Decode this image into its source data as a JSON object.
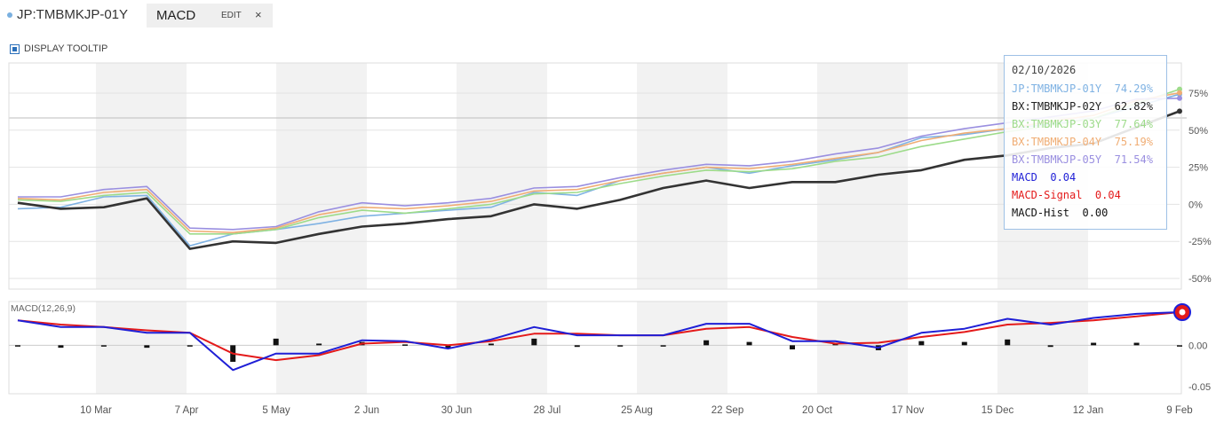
{
  "header": {
    "ticker": "JP:TMBMKJP-01Y",
    "study_tab": "MACD",
    "edit_label": "EDIT",
    "close_label": "×"
  },
  "toggle": {
    "label": "DISPLAY TOOLTIP"
  },
  "colors": {
    "s1": "#7fb2e3",
    "s2": "#333333",
    "s3": "#9ddb8a",
    "s4": "#f0ad74",
    "s5": "#9a8fe0",
    "macd": "#1f1fd6",
    "signal": "#e41a1a",
    "hist": "#111111",
    "shade": "#f2f2f2"
  },
  "tooltip": {
    "date": "02/10/2026",
    "rows": [
      {
        "label": "JP:TMBMKJP-01Y",
        "value": "74.29%",
        "color": "#7fb2e3"
      },
      {
        "label": "BX:TMBMKJP-02Y",
        "value": "62.82%",
        "color": "#222222"
      },
      {
        "label": "BX:TMBMKJP-03Y",
        "value": "77.64%",
        "color": "#9ddb8a"
      },
      {
        "label": "BX:TMBMKJP-04Y",
        "value": "75.19%",
        "color": "#f0ad74"
      },
      {
        "label": "BX:TMBMKJP-05Y",
        "value": "71.54%",
        "color": "#9a8fe0"
      },
      {
        "label": "MACD",
        "value": "0.04",
        "color": "#1f1fd6"
      },
      {
        "label": "MACD-Signal",
        "value": "0.04",
        "color": "#e41a1a"
      },
      {
        "label": "MACD-Hist",
        "value": "0.00",
        "color": "#111111"
      }
    ]
  },
  "chart_data": [
    {
      "type": "line",
      "y_unit": "%",
      "ylim": [
        -50,
        75
      ],
      "yticks": [
        "75%",
        "50%",
        "25%",
        "0%",
        "-25%",
        "-50%"
      ],
      "x": [
        "Feb 10",
        "Feb 24",
        "Mar 10",
        "Mar 24",
        "Apr 7",
        "Apr 21",
        "May 5",
        "May 19",
        "Jun 2",
        "Jun 16",
        "Jun 30",
        "Jul 14",
        "Jul 28",
        "Aug 11",
        "Aug 25",
        "Sep 8",
        "Sep 22",
        "Oct 6",
        "Oct 20",
        "Nov 3",
        "Nov 17",
        "Dec 1",
        "Dec 15",
        "Dec 29",
        "Jan 12",
        "Jan 26",
        "Feb 9",
        "Feb 10"
      ],
      "xticks": [
        "10 Mar",
        "7 Apr",
        "5 May",
        "2 Jun",
        "30 Jun",
        "28 Jul",
        "25 Aug",
        "22 Sep",
        "20 Oct",
        "17 Nov",
        "15 Dec",
        "12 Jan",
        "9 Feb"
      ],
      "series": [
        {
          "name": "JP:TMBMKJP-01Y",
          "values": [
            -3,
            -2,
            5,
            6,
            -28,
            -20,
            -17,
            -13,
            -8,
            -6,
            -4,
            -2,
            8,
            6,
            16,
            21,
            25,
            21,
            26,
            30,
            35,
            45,
            47,
            51,
            54,
            58,
            66,
            74.29
          ]
        },
        {
          "name": "BX:TMBMKJP-02Y",
          "values": [
            1,
            -3,
            -2,
            4,
            -30,
            -25,
            -26,
            -20,
            -15,
            -13,
            -10,
            -8,
            0,
            -3,
            3,
            11,
            16,
            11,
            15,
            15,
            20,
            23,
            30,
            33,
            38,
            41,
            52,
            62.82
          ]
        },
        {
          "name": "BX:TMBMKJP-03Y",
          "values": [
            3,
            2,
            6,
            8,
            -20,
            -20,
            -17,
            -9,
            -4,
            -6,
            -3,
            0,
            7,
            8,
            14,
            19,
            23,
            22,
            24,
            29,
            32,
            39,
            44,
            49,
            53,
            58,
            68,
            77.64
          ]
        },
        {
          "name": "BX:TMBMKJP-04Y",
          "values": [
            4,
            3,
            8,
            10,
            -18,
            -19,
            -16,
            -7,
            -2,
            -3,
            -1,
            2,
            9,
            10,
            16,
            21,
            25,
            24,
            27,
            31,
            35,
            43,
            48,
            51,
            56,
            60,
            70,
            75.19
          ]
        },
        {
          "name": "BX:TMBMKJP-05Y",
          "values": [
            5,
            5,
            10,
            12,
            -16,
            -17,
            -15,
            -5,
            1,
            -1,
            1,
            4,
            11,
            12,
            18,
            23,
            27,
            26,
            29,
            34,
            38,
            46,
            51,
            55,
            59,
            63,
            71,
            71.54
          ]
        }
      ]
    },
    {
      "type": "line",
      "title": "MACD(12,26,9)",
      "ylim": [
        -0.05,
        0.04
      ],
      "yticks": [
        "0.00",
        "-0.05"
      ],
      "x": [
        "Feb 10",
        "Feb 24",
        "Mar 10",
        "Mar 24",
        "Apr 7",
        "Apr 21",
        "May 5",
        "May 19",
        "Jun 2",
        "Jun 16",
        "Jun 30",
        "Jul 14",
        "Jul 28",
        "Aug 11",
        "Aug 25",
        "Sep 8",
        "Sep 22",
        "Oct 6",
        "Oct 20",
        "Nov 3",
        "Nov 17",
        "Dec 1",
        "Dec 15",
        "Dec 29",
        "Jan 12",
        "Jan 26",
        "Feb 9",
        "Feb 10"
      ],
      "series": [
        {
          "name": "MACD",
          "values": [
            0.03,
            0.022,
            0.022,
            0.015,
            0.015,
            -0.03,
            -0.01,
            -0.01,
            0.006,
            0.005,
            -0.004,
            0.007,
            0.022,
            0.012,
            0.012,
            0.012,
            0.026,
            0.026,
            0.005,
            0.005,
            -0.003,
            0.015,
            0.02,
            0.032,
            0.025,
            0.033,
            0.038,
            0.04
          ]
        },
        {
          "name": "MACD-Signal",
          "values": [
            0.03,
            0.025,
            0.022,
            0.018,
            0.015,
            -0.01,
            -0.018,
            -0.012,
            0.002,
            0.004,
            0.0,
            0.005,
            0.014,
            0.014,
            0.012,
            0.012,
            0.02,
            0.022,
            0.01,
            0.002,
            0.003,
            0.01,
            0.016,
            0.025,
            0.027,
            0.03,
            0.035,
            0.04
          ]
        },
        {
          "name": "MACD-Hist",
          "values": [
            0.0,
            -0.003,
            0.0,
            -0.003,
            0.0,
            -0.02,
            0.008,
            0.002,
            0.004,
            0.001,
            -0.004,
            0.002,
            0.008,
            -0.002,
            0.0,
            0.0,
            0.006,
            0.004,
            -0.005,
            0.003,
            -0.006,
            0.005,
            0.004,
            0.007,
            -0.002,
            0.003,
            0.003,
            0.0
          ]
        }
      ]
    }
  ]
}
